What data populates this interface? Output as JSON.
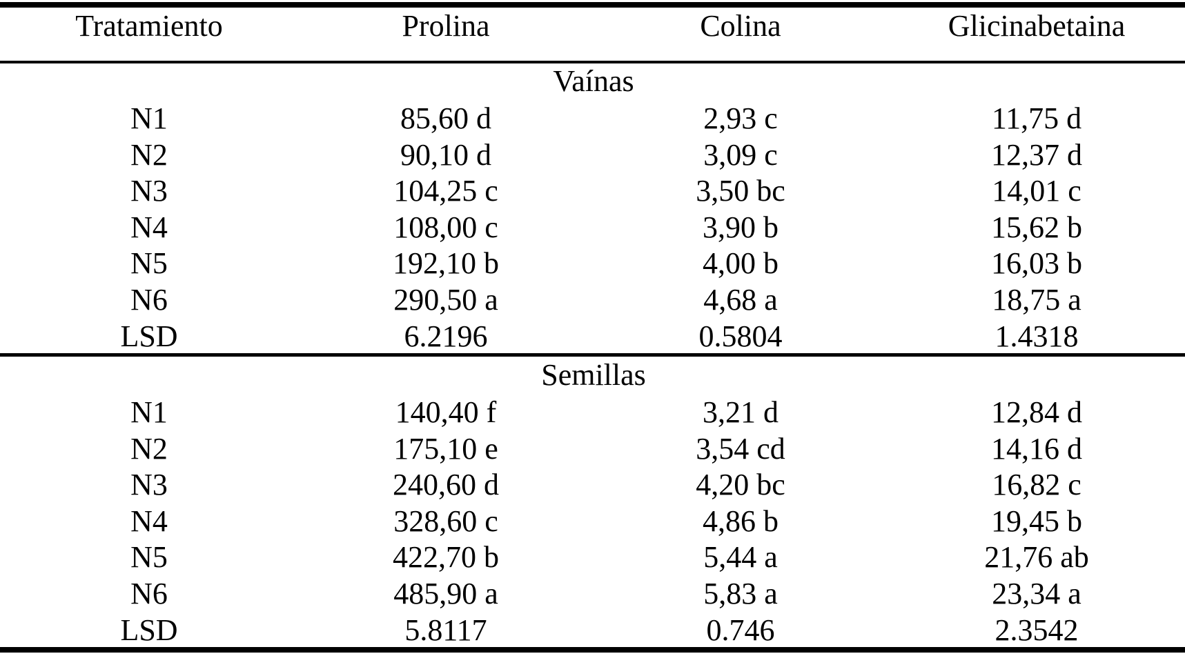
{
  "table": {
    "header": [
      "Tratamiento",
      "Prolina",
      "Colina",
      "Glicinabetaina"
    ],
    "sections": [
      {
        "title": "Vaínas",
        "rows": [
          [
            "N1",
            "85,60 d",
            "2,93 c",
            "11,75 d"
          ],
          [
            "N2",
            "90,10 d",
            "3,09 c",
            "12,37 d"
          ],
          [
            "N3",
            "104,25 c",
            "3,50 bc",
            "14,01 c"
          ],
          [
            "N4",
            "108,00 c",
            "3,90 b",
            "15,62 b"
          ],
          [
            "N5",
            "192,10 b",
            "4,00 b",
            "16,03 b"
          ],
          [
            "N6",
            "290,50 a",
            "4,68 a",
            "18,75 a"
          ],
          [
            "LSD",
            "6.2196",
            "0.5804",
            "1.4318"
          ]
        ]
      },
      {
        "title": "Semillas",
        "rows": [
          [
            "N1",
            "140,40 f",
            "3,21 d",
            "12,84 d"
          ],
          [
            "N2",
            "175,10 e",
            "3,54 cd",
            "14,16 d"
          ],
          [
            "N3",
            "240,60 d",
            "4,20 bc",
            "16,82 c"
          ],
          [
            "N4",
            "328,60 c",
            "4,86 b",
            "19,45 b"
          ],
          [
            "N5",
            "422,70 b",
            "5,44 a",
            "21,76 ab"
          ],
          [
            "N6",
            "485,90 a",
            "5,83 a",
            "23,34 a"
          ],
          [
            "LSD",
            "5.8117",
            "0.746",
            "2.3542"
          ]
        ]
      }
    ]
  }
}
